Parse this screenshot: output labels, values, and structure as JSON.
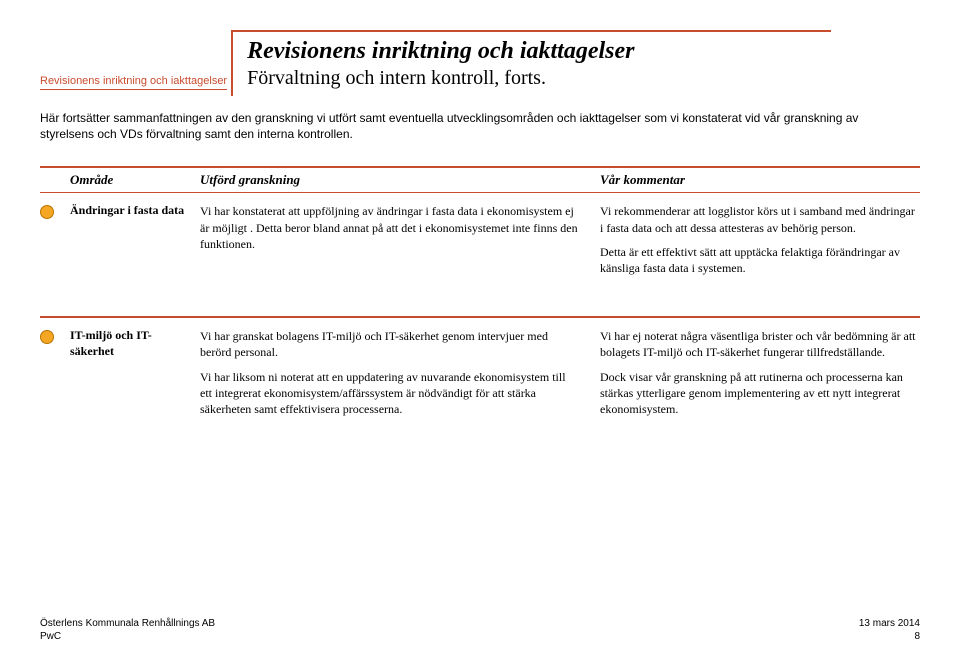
{
  "breadcrumb": "Revisionens inriktning och iakttagelser",
  "title": {
    "main": "Revisionens inriktning och iakttagelser",
    "sub": "Förvaltning och intern kontroll, forts."
  },
  "intro": "Här fortsätter sammanfattningen av den granskning vi utfört samt eventuella utvecklingsområden och iakttagelser som vi konstaterat vid vår granskning av styrelsens och VDs förvaltning samt den interna kontrollen.",
  "headers": {
    "area": "Område",
    "work": "Utförd granskning",
    "comment": "Vår kommentar"
  },
  "rows": [
    {
      "bullet_color": "#f5a623",
      "area": "Ändringar i fasta data",
      "work": [
        "Vi har konstaterat att uppföljning av ändringar i fasta data i ekonomisystem ej är möjligt . Detta beror bland annat på att det i ekonomisystemet inte  finns den funktionen."
      ],
      "comment": [
        "Vi rekommenderar att logglistor körs ut i samband med ändringar i fasta data och att dessa attesteras av behörig person.",
        "Detta är ett effektivt sätt att upptäcka felaktiga förändringar av känsliga fasta data i systemen."
      ]
    },
    {
      "bullet_color": "#f5a623",
      "area": "IT-miljö och IT-säkerhet",
      "work": [
        "Vi har granskat bolagens IT-miljö och IT-säkerhet genom intervjuer med berörd personal.",
        "Vi har liksom ni noterat  att en uppdatering av nuvarande ekonomisystem till ett integrerat ekonomisystem/affärssystem  är nödvändigt för att  stärka säkerheten samt effektivisera processerna."
      ],
      "comment": [
        "Vi har ej noterat  några  väsentliga brister och vår bedömning är att bolagets IT-miljö och IT-säkerhet fungerar tillfredställande.",
        "Dock visar vår granskning på att rutinerna och processerna kan stärkas ytterligare genom implementering av  ett nytt integrerat ekonomisystem."
      ]
    }
  ],
  "footer": {
    "company": "Österlens Kommunala Renhållnings AB",
    "firm": "PwC",
    "date": "13 mars 2014",
    "page": "8"
  },
  "colors": {
    "accent": "#c84d2f",
    "bullet": "#f5a623"
  }
}
